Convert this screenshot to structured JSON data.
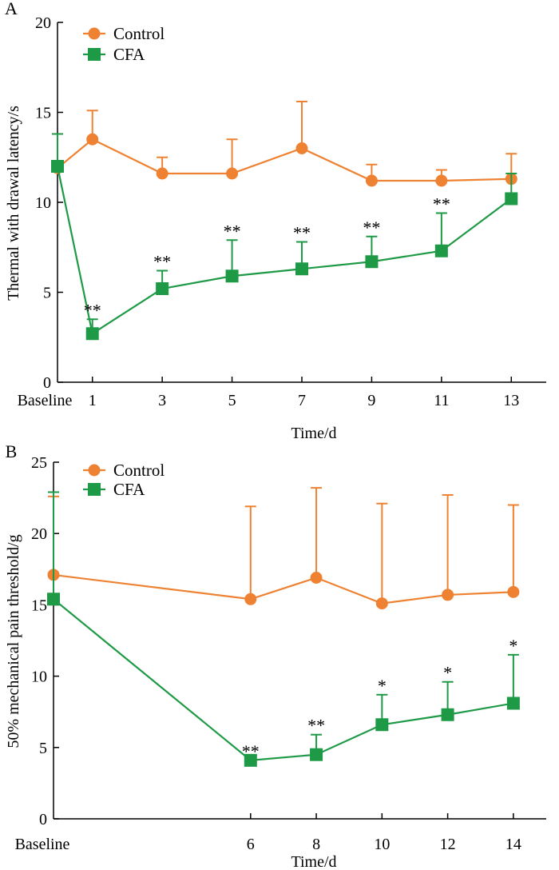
{
  "colors": {
    "control": "#ee8232",
    "cfa": "#1e9a46",
    "axis": "#000000"
  },
  "chart_data": [
    {
      "panel": "A",
      "type": "line",
      "ylabel": "Thermal with drawal latency/s",
      "xlabel": "Time/d",
      "baseline_label": "Baseline",
      "x": [
        0,
        1,
        3,
        5,
        7,
        9,
        11,
        13
      ],
      "xlim": [
        0,
        14
      ],
      "xtick_values": [
        1,
        3,
        5,
        7,
        9,
        11,
        13
      ],
      "xtick_labels": [
        "1",
        "3",
        "5",
        "7",
        "9",
        "11",
        "13"
      ],
      "ylim": [
        0,
        20
      ],
      "ytick_values": [
        0,
        5,
        10,
        15,
        20
      ],
      "ytick_labels": [
        "0",
        "5",
        "10",
        "15",
        "20"
      ],
      "legend": {
        "position": "top-left",
        "entries": [
          "Control",
          "CFA"
        ]
      },
      "series": [
        {
          "name": "Control",
          "marker": "circle",
          "values": [
            11.9,
            13.5,
            11.6,
            11.6,
            13.0,
            11.2,
            11.2,
            11.3
          ],
          "errors": [
            1.9,
            1.6,
            0.9,
            1.9,
            2.6,
            0.9,
            0.6,
            1.4
          ],
          "annotations": [
            "",
            "",
            "",
            "",
            "",
            "",
            "",
            ""
          ]
        },
        {
          "name": "CFA",
          "marker": "square",
          "values": [
            12.0,
            2.7,
            5.2,
            5.9,
            6.3,
            6.7,
            7.3,
            10.2
          ],
          "errors": [
            1.8,
            0.8,
            1.0,
            2.0,
            1.5,
            1.4,
            2.1,
            1.4
          ],
          "annotations": [
            "",
            "**",
            "**",
            "**",
            "**",
            "**",
            "**",
            ""
          ]
        }
      ]
    },
    {
      "panel": "B",
      "type": "line",
      "ylabel": "50% mechanical pain threshold/g",
      "xlabel": "Time/d",
      "baseline_label": "Baseline",
      "x": [
        0,
        6,
        8,
        10,
        12,
        14
      ],
      "xlim": [
        0,
        15
      ],
      "xtick_values": [
        6,
        8,
        10,
        12,
        14
      ],
      "xtick_labels": [
        "6",
        "8",
        "10",
        "12",
        "14"
      ],
      "ylim": [
        0,
        25
      ],
      "ytick_values": [
        0,
        5,
        10,
        15,
        20,
        25
      ],
      "ytick_labels": [
        "0",
        "5",
        "10",
        "15",
        "20",
        "25"
      ],
      "legend": {
        "position": "top-left",
        "entries": [
          "Control",
          "CFA"
        ]
      },
      "series": [
        {
          "name": "Control",
          "marker": "circle",
          "values": [
            17.1,
            15.4,
            16.9,
            15.1,
            15.7,
            15.9
          ],
          "errors": [
            5.5,
            6.5,
            6.3,
            7.0,
            7.0,
            6.1
          ],
          "annotations": [
            "",
            "",
            "",
            "",
            "",
            ""
          ]
        },
        {
          "name": "CFA",
          "marker": "square",
          "values": [
            15.4,
            4.1,
            4.5,
            6.6,
            7.3,
            8.1
          ],
          "errors": [
            7.5,
            0.0,
            1.4,
            2.1,
            2.3,
            3.4
          ],
          "annotations": [
            "",
            "**",
            "**",
            "*",
            "*",
            "*"
          ]
        }
      ]
    }
  ]
}
